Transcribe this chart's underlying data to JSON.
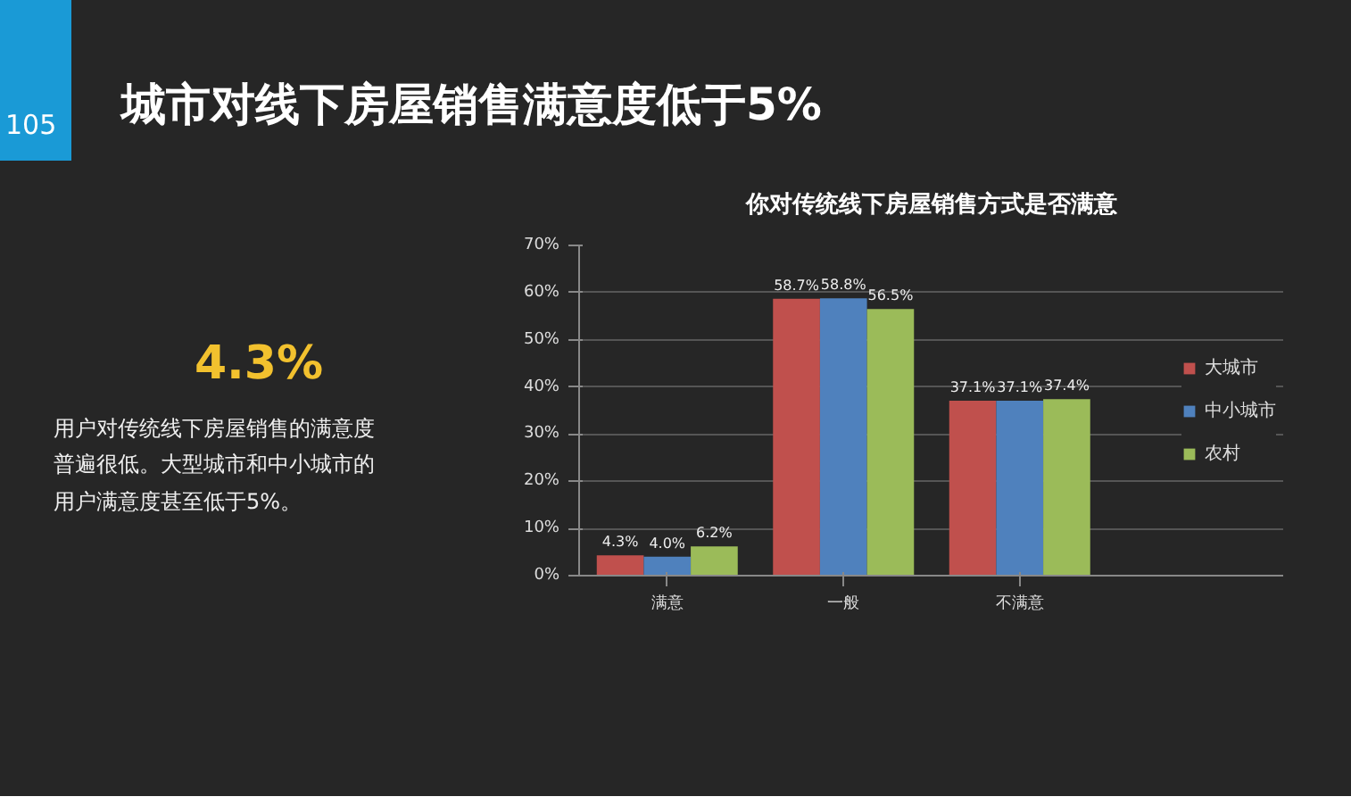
{
  "chart_data": {
    "type": "bar",
    "title": "城市对线下房屋销售满意度低于5%",
    "subtitle": "你对传统线下房屋销售方式是否满意",
    "annotations": [
      "105",
      "4.3%",
      "用户对传统线下房屋销售的满意度普遍很低。大型城市和中小城市的用户满意度甚至低于5%。"
    ],
    "categories": [
      "满意",
      "一般",
      "不满意"
    ],
    "series": [
      {
        "name": "大城市",
        "color": "#c0504d",
        "values": [
          4.3,
          58.7,
          37.1
        ],
        "value_labels": [
          "4.3%",
          "58.7%",
          "37.1%"
        ]
      },
      {
        "name": "中小城市",
        "color": "#4f81bd",
        "values": [
          4.0,
          58.8,
          37.1
        ],
        "value_labels": [
          "4.0%",
          "58.8%",
          "37.1%"
        ]
      },
      {
        "name": "农村",
        "color": "#9bbb59",
        "values": [
          6.2,
          56.5,
          37.4
        ],
        "value_labels": [
          "6.2%",
          "56.5%",
          "37.4%"
        ]
      }
    ],
    "ylim": [
      0,
      70
    ],
    "yticks": [
      {
        "value": 0,
        "label": "0%"
      },
      {
        "value": 10,
        "label": "10%"
      },
      {
        "value": 20,
        "label": "20%"
      },
      {
        "value": 30,
        "label": "30%"
      },
      {
        "value": 40,
        "label": "40%"
      },
      {
        "value": 50,
        "label": "50%"
      },
      {
        "value": 60,
        "label": "60%"
      },
      {
        "value": 70,
        "label": "70%"
      }
    ],
    "grid": "y",
    "legend": "right"
  }
}
